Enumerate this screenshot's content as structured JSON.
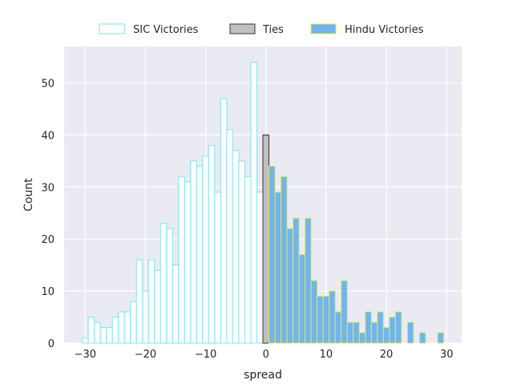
{
  "chart_data": {
    "type": "bar",
    "xlabel": "spread",
    "ylabel": "Count",
    "xlim": [
      -33.5,
      32.5
    ],
    "ylim": [
      0,
      57
    ],
    "xticks": [
      -30,
      -20,
      -10,
      0,
      10,
      20,
      30
    ],
    "yticks": [
      0,
      10,
      20,
      30,
      40,
      50
    ],
    "grid": true,
    "legend_position": "top-center",
    "bin_width": 1,
    "series": [
      {
        "name": "SIC Victories",
        "style": "outline",
        "edge_color": "#7fe5ec",
        "fill_color": "#ffffff",
        "x": [
          -30,
          -29,
          -28,
          -27,
          -26,
          -25,
          -24,
          -23,
          -22,
          -21,
          -20,
          -19,
          -18,
          -17,
          -16,
          -15,
          -14,
          -13,
          -12,
          -11,
          -10,
          -9,
          -8,
          -7,
          -6,
          -5,
          -4,
          -3,
          -2,
          -1
        ],
        "values": [
          1,
          5,
          4,
          3,
          3,
          5,
          6,
          6,
          8,
          16,
          10,
          16,
          14,
          23,
          22,
          15,
          32,
          31,
          35,
          34,
          36,
          38,
          29,
          47,
          41,
          37,
          35,
          32,
          54,
          29
        ]
      },
      {
        "name": "Ties",
        "style": "filled",
        "edge_color": "#333333",
        "fill_color": "#c0c0c0",
        "x": [
          0
        ],
        "values": [
          40
        ]
      },
      {
        "name": "Hindu Victories",
        "style": "filled",
        "edge_color": "#e3e84a",
        "fill_color": "#72b4ec",
        "x": [
          1,
          2,
          3,
          4,
          5,
          6,
          7,
          8,
          9,
          10,
          11,
          12,
          13,
          14,
          15,
          16,
          17,
          18,
          19,
          20,
          21,
          22,
          23,
          24,
          25,
          26,
          27,
          28,
          29
        ],
        "values": [
          34,
          29,
          32,
          22,
          24,
          17,
          24,
          12,
          9,
          9,
          10,
          6,
          12,
          4,
          4,
          2,
          6,
          4,
          6,
          3,
          5,
          6,
          0,
          4,
          0,
          2,
          0,
          0,
          2
        ]
      }
    ]
  }
}
